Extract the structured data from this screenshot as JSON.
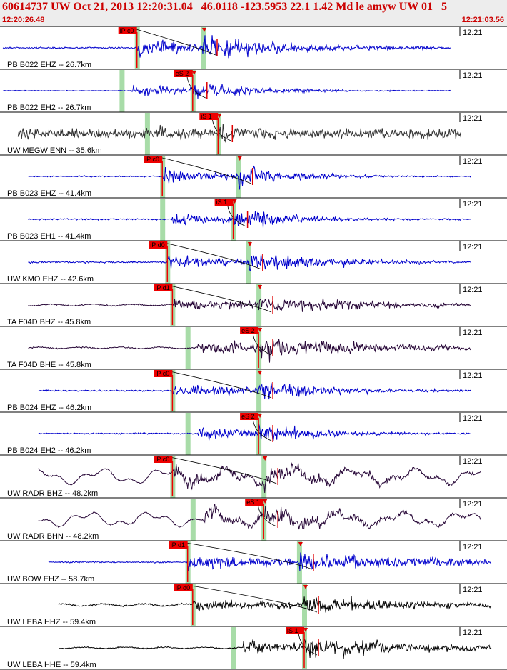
{
  "header": {
    "title": "60614737 UW Oct 21, 2013 12:20:31.04   46.0118 -123.5953 22.1 1.42 Md le amyw UW 01   5",
    "start_time": "12:20:26.48",
    "end_time": "12:21:03.56"
  },
  "colors": {
    "accent": "#cc0000",
    "blue_trace": "#0000cc",
    "black_trace": "#000000",
    "purple_trace": "#2a0a3a",
    "pick_box": "#ee0000",
    "phase_band": "#a8dca8"
  },
  "tick_label": "12:21",
  "traces": [
    {
      "label": "PB B022 EHZ -- 26.7km",
      "color": "blue",
      "pick": "iP c0",
      "pick_kind": "P",
      "pick_t": 0.27,
      "s_t": 0.4,
      "amp": 0.5,
      "noise": 0.06,
      "decay": 0.22,
      "start": 0.0,
      "end": 0.89,
      "style": "noise"
    },
    {
      "label": "PB B022 EH2 -- 26.7km",
      "color": "blue",
      "pick": "eS 2",
      "pick_kind": "S",
      "pick_t": 0.38,
      "s_t": 0.38,
      "amp": 0.45,
      "noise": 0.03,
      "decay": 0.14,
      "start": 0.0,
      "end": 0.89,
      "style": "noise"
    },
    {
      "label": "UW MEGW ENN -- 35.6km",
      "color": "gray",
      "pick": "iS 1",
      "pick_kind": "S",
      "pick_t": 0.43,
      "s_t": 0.43,
      "amp": 0.55,
      "noise": 0.35,
      "decay": 0.05,
      "start": 0.03,
      "end": 0.91,
      "style": "noise"
    },
    {
      "label": "PB B023 EHZ -- 41.4km",
      "color": "blue",
      "pick": "iP c0",
      "pick_kind": "P",
      "pick_t": 0.32,
      "s_t": 0.47,
      "amp": 0.5,
      "noise": 0.04,
      "decay": 0.14,
      "start": 0.05,
      "end": 0.93,
      "style": "noise"
    },
    {
      "label": "PB B023 EH1 -- 41.4km",
      "color": "blue",
      "pick": "iS 1",
      "pick_kind": "S",
      "pick_t": 0.46,
      "s_t": 0.46,
      "amp": 0.5,
      "noise": 0.05,
      "decay": 0.14,
      "start": 0.05,
      "end": 0.93,
      "style": "noise"
    },
    {
      "label": "UW KMO EHZ -- 42.6km",
      "color": "blue",
      "pick": "iP d0",
      "pick_kind": "P",
      "pick_t": 0.33,
      "s_t": 0.49,
      "amp": 0.5,
      "noise": 0.07,
      "decay": 0.18,
      "start": 0.05,
      "end": 0.93,
      "style": "noise"
    },
    {
      "label": "TA F04D BHZ -- 45.8km",
      "color": "purple",
      "pick": "iP d1",
      "pick_kind": "P",
      "pick_t": 0.34,
      "s_t": 0.51,
      "amp": 0.42,
      "noise": 0.12,
      "decay": 0.25,
      "start": 0.05,
      "end": 0.93,
      "style": "wavy"
    },
    {
      "label": "TA F04D BHE -- 45.8km",
      "color": "purple",
      "pick": "eS 2",
      "pick_kind": "S",
      "pick_t": 0.51,
      "s_t": 0.51,
      "amp": 0.5,
      "noise": 0.12,
      "decay": 0.25,
      "start": 0.05,
      "end": 0.93,
      "style": "wavy"
    },
    {
      "label": "PB B024 EHZ -- 46.2km",
      "color": "blue",
      "pick": "iP c0",
      "pick_kind": "P",
      "pick_t": 0.34,
      "s_t": 0.51,
      "amp": 0.5,
      "noise": 0.05,
      "decay": 0.16,
      "start": 0.07,
      "end": 0.93,
      "style": "noise"
    },
    {
      "label": "PB B024 EH2 -- 46.2km",
      "color": "blue",
      "pick": "eS 2",
      "pick_kind": "S",
      "pick_t": 0.51,
      "s_t": 0.51,
      "amp": 0.5,
      "noise": 0.05,
      "decay": 0.14,
      "start": 0.07,
      "end": 0.93,
      "style": "noise"
    },
    {
      "label": "UW RADR BHZ -- 48.2km",
      "color": "purple",
      "pick": "iP c0",
      "pick_kind": "P",
      "pick_t": 0.34,
      "s_t": 0.52,
      "amp": 0.45,
      "noise": 0.55,
      "decay": 0.2,
      "start": 0.07,
      "end": 0.95,
      "style": "lowfreq"
    },
    {
      "label": "UW RADR BHN -- 48.2km",
      "color": "purple",
      "pick": "eS 1",
      "pick_kind": "S",
      "pick_t": 0.52,
      "s_t": 0.52,
      "amp": 0.45,
      "noise": 0.5,
      "decay": 0.2,
      "start": 0.07,
      "end": 0.95,
      "style": "lowfreq"
    },
    {
      "label": "UW BOW EHZ -- 58.7km",
      "color": "blue",
      "pick": "iP d1",
      "pick_kind": "P",
      "pick_t": 0.37,
      "s_t": 0.59,
      "amp": 0.5,
      "noise": 0.05,
      "decay": 0.3,
      "start": 0.09,
      "end": 0.97,
      "style": "noise"
    },
    {
      "label": "UW LEBA HHZ -- 59.4km",
      "color": "black",
      "pick": "iP d0",
      "pick_kind": "P",
      "pick_t": 0.38,
      "s_t": 0.6,
      "amp": 0.35,
      "noise": 0.18,
      "decay": 0.3,
      "start": 0.11,
      "end": 0.97,
      "style": "wavy"
    },
    {
      "label": "UW LEBA HHE -- 59.4km",
      "color": "black",
      "pick": "iS 1",
      "pick_kind": "S",
      "pick_t": 0.6,
      "s_t": 0.6,
      "amp": 0.5,
      "noise": 0.12,
      "decay": 0.25,
      "start": 0.11,
      "end": 0.97,
      "style": "wavy"
    }
  ]
}
